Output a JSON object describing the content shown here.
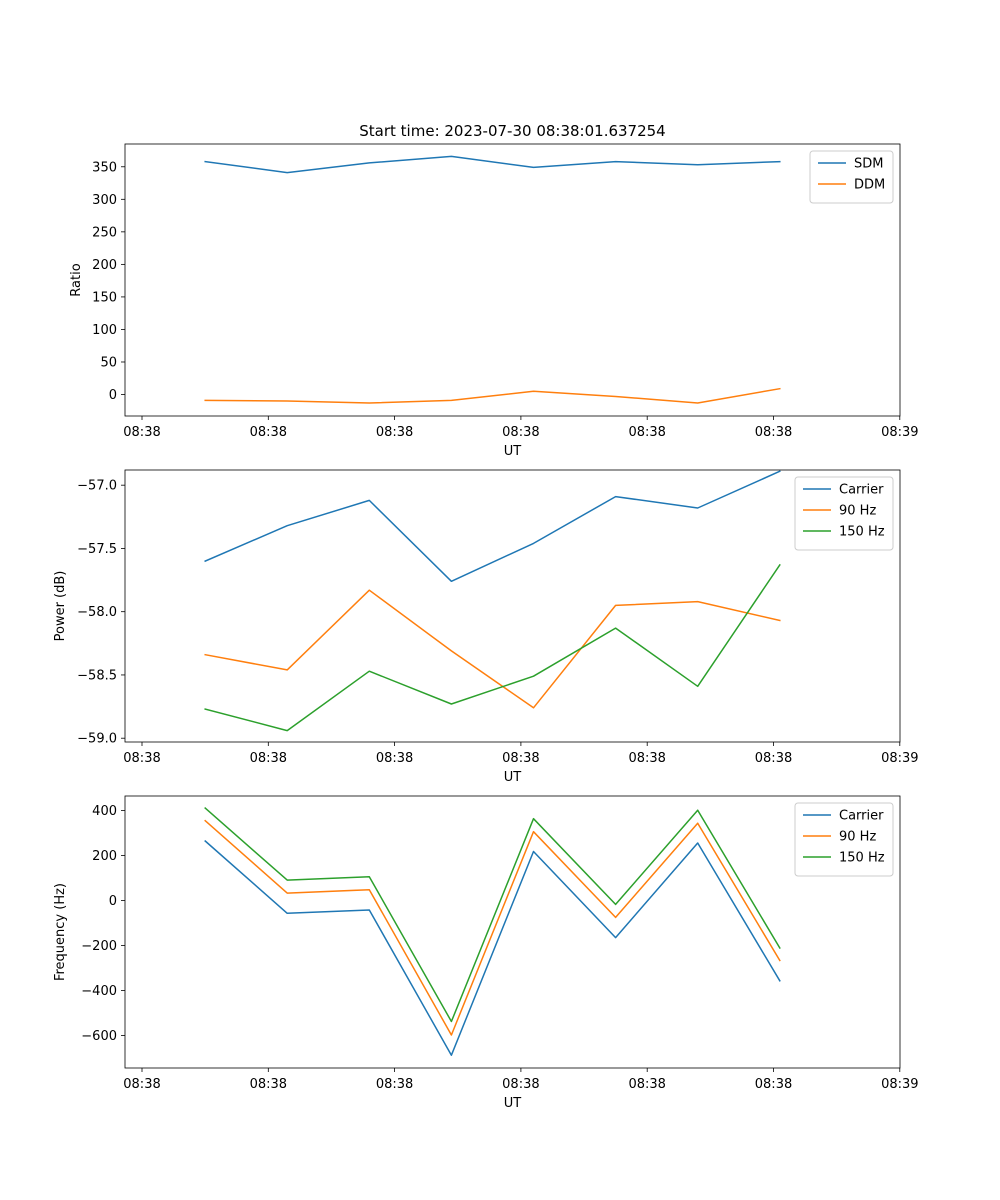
{
  "chart_data": [
    {
      "type": "line",
      "title": "Start time: 2023-07-30 08:38:01.637254",
      "xlabel": "UT",
      "ylabel": "Ratio",
      "xlim": [
        0,
        6
      ],
      "ylim": [
        -33,
        385
      ],
      "x": [
        0.5,
        1.15,
        1.8,
        2.45,
        3.1,
        3.75,
        4.4,
        5.05
      ],
      "x_ticks": [
        0,
        1,
        2,
        3,
        4,
        5,
        6
      ],
      "x_tick_labels": [
        "08:38",
        "08:38",
        "08:38",
        "08:38",
        "08:38",
        "08:38",
        "08:39"
      ],
      "y_ticks": [
        0,
        50,
        100,
        150,
        200,
        250,
        300,
        350
      ],
      "y_tick_labels": [
        "0",
        "50",
        "100",
        "150",
        "200",
        "250",
        "300",
        "350"
      ],
      "legend_position": "top-right",
      "series": [
        {
          "name": "SDM",
          "color": "#1f77b4",
          "values": [
            358,
            341,
            356,
            366,
            349,
            358,
            353,
            358
          ]
        },
        {
          "name": "DDM",
          "color": "#ff7f0e",
          "values": [
            -9,
            -10,
            -13,
            -9,
            5,
            -3,
            -13,
            9
          ]
        }
      ]
    },
    {
      "type": "line",
      "title": "",
      "xlabel": "UT",
      "ylabel": "Power (dB)",
      "xlim": [
        0,
        6
      ],
      "ylim": [
        -59.03,
        -56.88
      ],
      "x": [
        0.5,
        1.15,
        1.8,
        2.45,
        3.1,
        3.75,
        4.4,
        5.05
      ],
      "x_ticks": [
        0,
        1,
        2,
        3,
        4,
        5,
        6
      ],
      "x_tick_labels": [
        "08:38",
        "08:38",
        "08:38",
        "08:38",
        "08:38",
        "08:38",
        "08:39"
      ],
      "y_ticks": [
        -59.0,
        -58.5,
        -58.0,
        -57.5,
        -57.0
      ],
      "y_tick_labels": [
        "−59.0",
        "−58.5",
        "−58.0",
        "−57.5",
        "−57.0"
      ],
      "legend_position": "top-right",
      "series": [
        {
          "name": "Carrier",
          "color": "#1f77b4",
          "values": [
            -57.6,
            -57.32,
            -57.12,
            -57.76,
            -57.46,
            -57.09,
            -57.18,
            -56.89
          ]
        },
        {
          "name": "90 Hz",
          "color": "#ff7f0e",
          "values": [
            -58.34,
            -58.46,
            -57.83,
            -58.31,
            -58.76,
            -57.95,
            -57.92,
            -58.07
          ]
        },
        {
          "name": "150 Hz",
          "color": "#2ca02c",
          "values": [
            -58.77,
            -58.94,
            -58.47,
            -58.73,
            -58.51,
            -58.13,
            -58.59,
            -57.63
          ]
        }
      ]
    },
    {
      "type": "line",
      "title": "",
      "xlabel": "UT",
      "ylabel": "Frequency (Hz)",
      "xlim": [
        0,
        6
      ],
      "ylim": [
        -745,
        465
      ],
      "x": [
        0.5,
        1.15,
        1.8,
        2.45,
        3.1,
        3.75,
        4.4,
        5.05
      ],
      "x_ticks": [
        0,
        1,
        2,
        3,
        4,
        5,
        6
      ],
      "x_tick_labels": [
        "08:38",
        "08:38",
        "08:38",
        "08:38",
        "08:38",
        "08:38",
        "08:39"
      ],
      "y_ticks": [
        -600,
        -400,
        -200,
        0,
        200,
        400
      ],
      "y_tick_labels": [
        "−600",
        "−400",
        "−200",
        "0",
        "200",
        "400"
      ],
      "legend_position": "top-right",
      "series": [
        {
          "name": "Carrier",
          "color": "#1f77b4",
          "values": [
            265,
            -57,
            -42,
            -688,
            218,
            -165,
            256,
            -357
          ]
        },
        {
          "name": "90 Hz",
          "color": "#ff7f0e",
          "values": [
            355,
            33,
            48,
            -598,
            306,
            -75,
            344,
            -267
          ]
        },
        {
          "name": "150 Hz",
          "color": "#2ca02c",
          "values": [
            411,
            91,
            106,
            -538,
            364,
            -17,
            402,
            -211
          ]
        }
      ]
    }
  ]
}
